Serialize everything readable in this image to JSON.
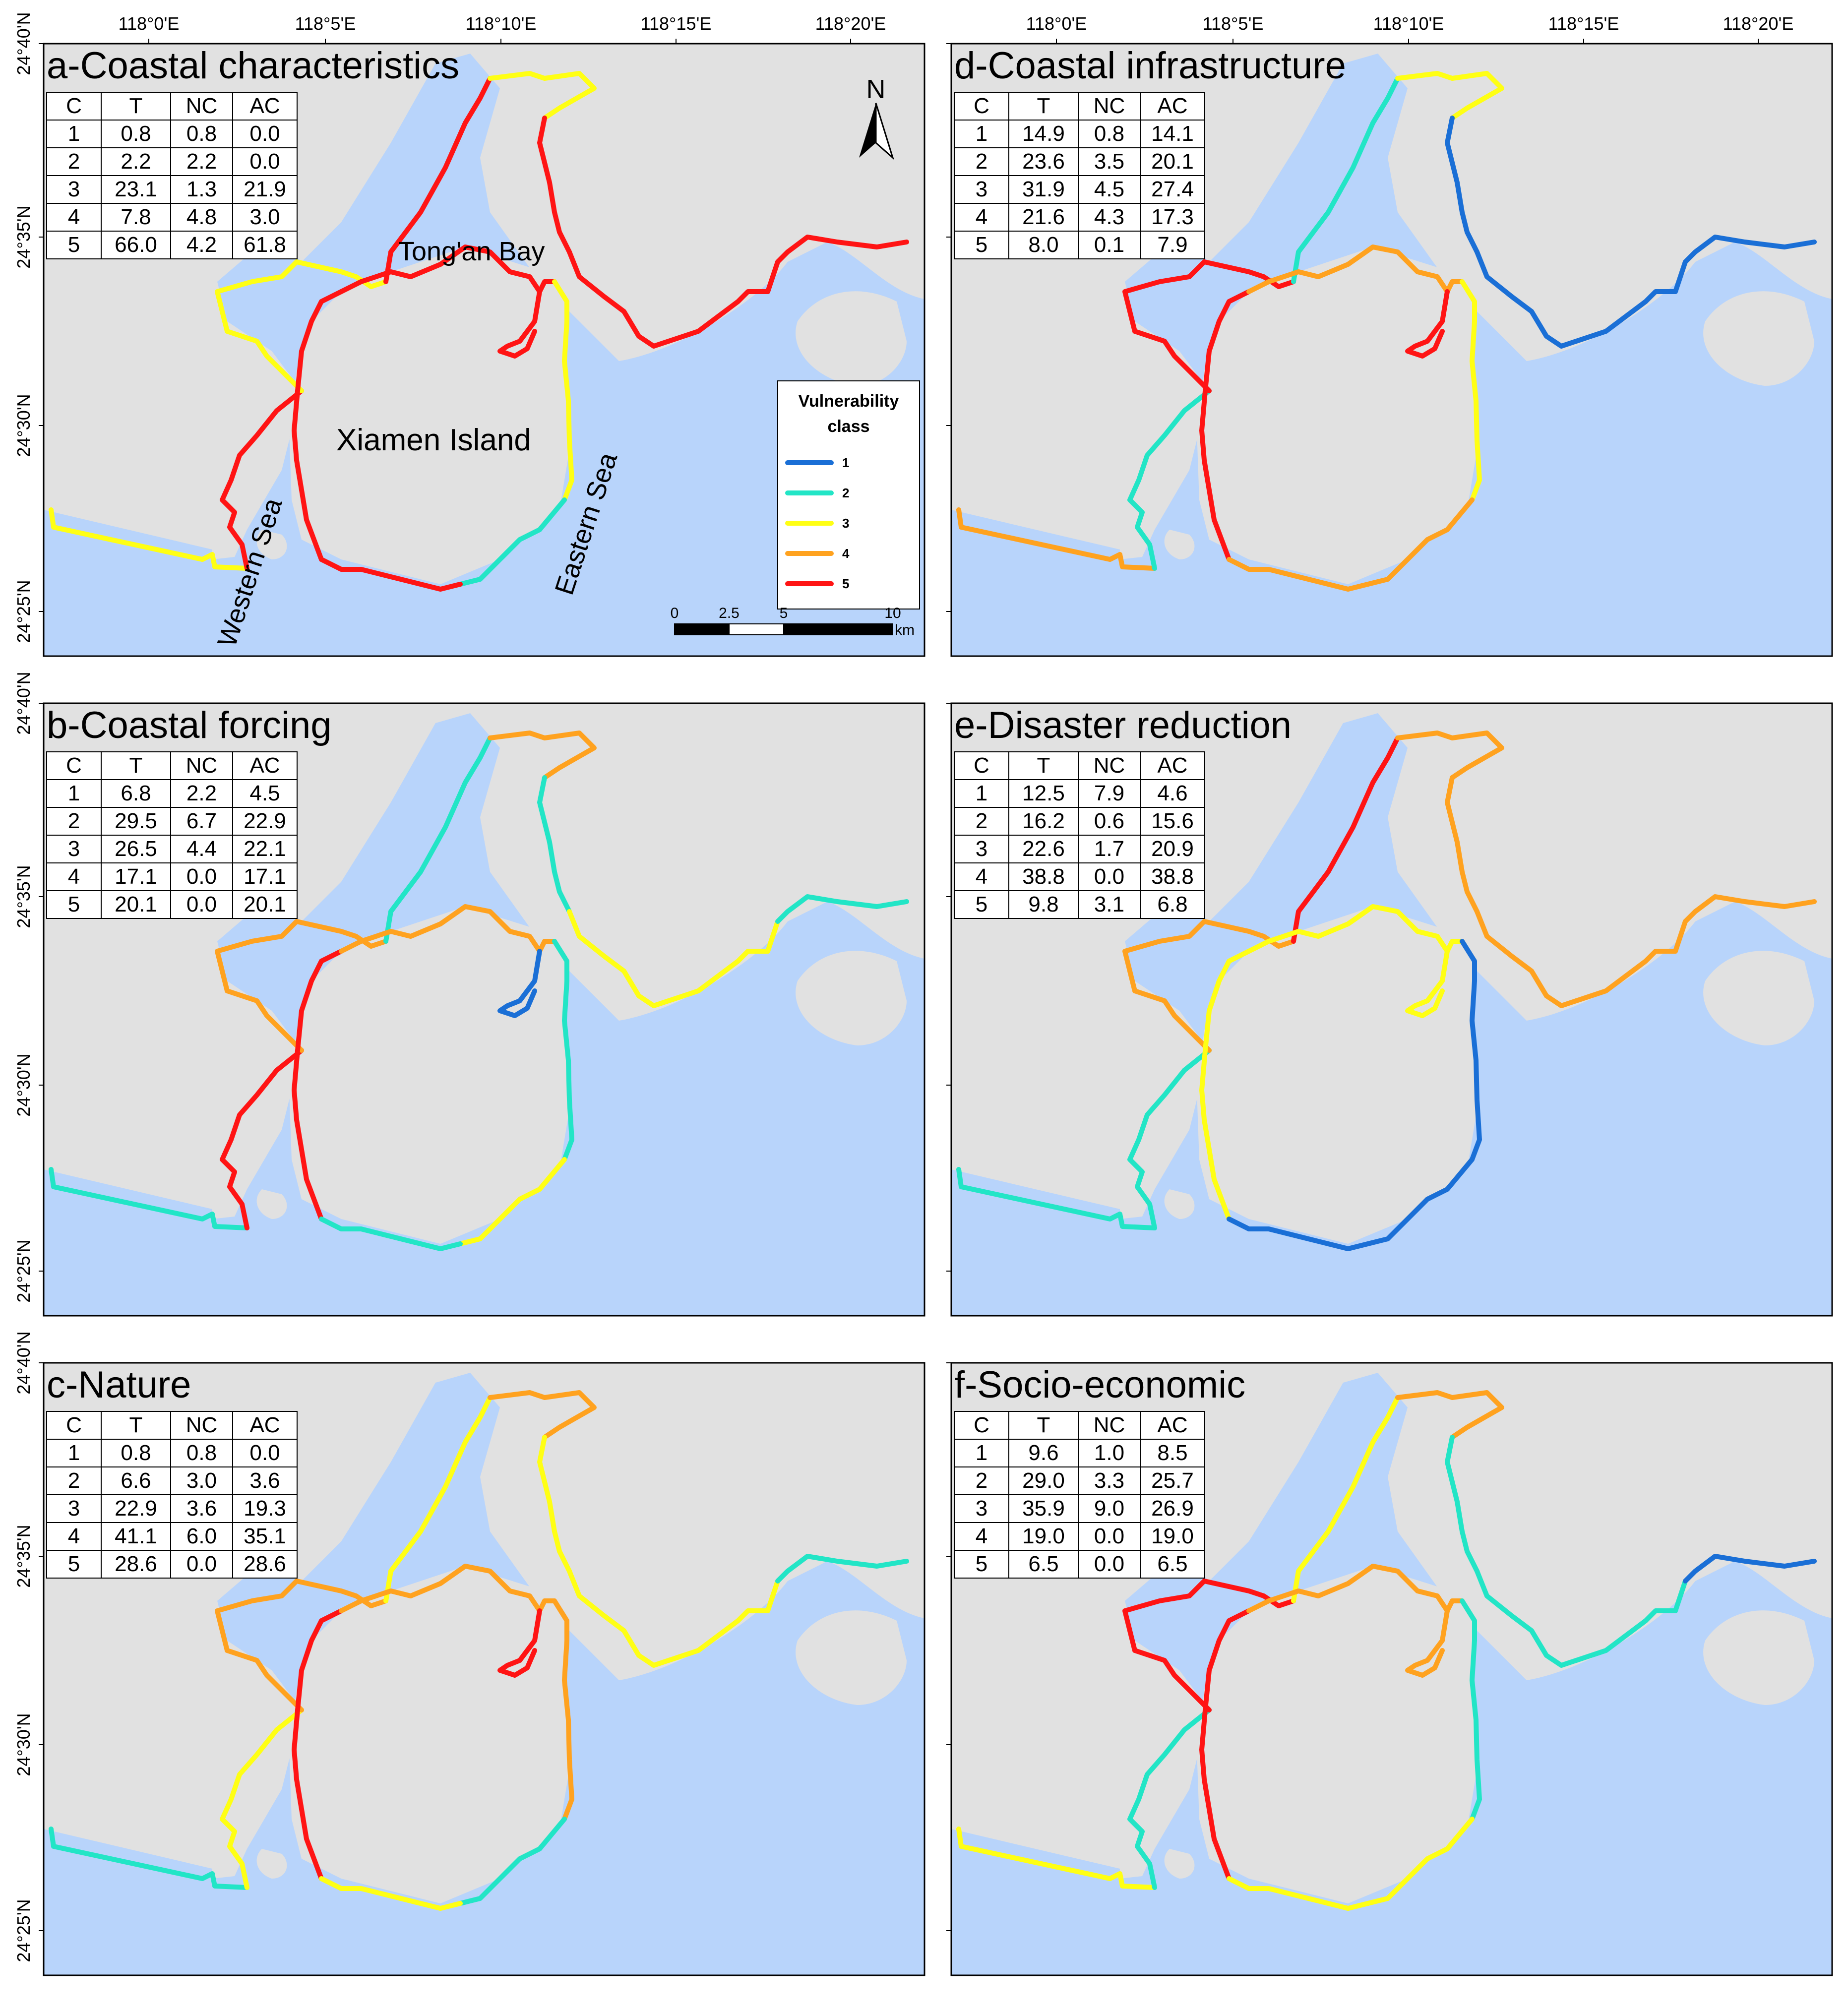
{
  "axes": {
    "lon_labels": [
      "118°0'E",
      "118°5'E",
      "118°10'E",
      "118°15'E",
      "118°20'E"
    ],
    "lat_labels": [
      "24°40'N",
      "24°35'N",
      "24°30'N",
      "24°25'N"
    ]
  },
  "class_colors": {
    "1": "#1a6fd6",
    "2": "#22e5c6",
    "3": "#ffff14",
    "4": "#ffa21f",
    "5": "#ff1414"
  },
  "colors": {
    "land": "#e1e1e1",
    "sea": "#b8d4fb",
    "frame": "#000000"
  },
  "place_labels": {
    "tongan_bay": "Tong'an Bay",
    "xiamen_island": "Xiamen Island",
    "western_sea": "Western Sea",
    "eastern_sea": "Eastern Sea"
  },
  "north_arrow": "N",
  "legend": {
    "title1": "Vulnerability",
    "title2": "class",
    "classes": [
      "1",
      "2",
      "3",
      "4",
      "5"
    ]
  },
  "scale_bar": {
    "ticks": [
      "0",
      "2.5",
      "5",
      "10"
    ],
    "unit": "km"
  },
  "table_headers": [
    "C",
    "T",
    "NC",
    "AC"
  ],
  "panels": [
    {
      "title": "a-Coastal characteristics",
      "rows": [
        [
          "1",
          "0.8",
          "0.8",
          "0.0"
        ],
        [
          "2",
          "2.2",
          "2.2",
          "0.0"
        ],
        [
          "3",
          "23.1",
          "1.3",
          "21.9"
        ],
        [
          "4",
          "7.8",
          "4.8",
          "3.0"
        ],
        [
          "5",
          "66.0",
          "4.2",
          "61.8"
        ]
      ],
      "segments": {
        "mainland_w": 5,
        "mainland_nw": 3,
        "bay_w": 5,
        "bay_n": 3,
        "bay_e": 5,
        "bay_se": 5,
        "east_main": 5,
        "east_far": 5,
        "island_w": 5,
        "island_n": 5,
        "island_e": 3,
        "island_se": 2,
        "island_s": 5,
        "inlet": 5,
        "western_sea": 3
      }
    },
    {
      "title": "b-Coastal forcing",
      "rows": [
        [
          "1",
          "6.8",
          "2.2",
          "4.5"
        ],
        [
          "2",
          "29.5",
          "6.7",
          "22.9"
        ],
        [
          "3",
          "26.5",
          "4.4",
          "22.1"
        ],
        [
          "4",
          "17.1",
          "0.0",
          "17.1"
        ],
        [
          "5",
          "20.1",
          "0.0",
          "20.1"
        ]
      ],
      "segments": {
        "mainland_w": 5,
        "mainland_nw": 4,
        "bay_w": 2,
        "bay_n": 4,
        "bay_e": 2,
        "bay_se": 3,
        "east_main": 3,
        "east_far": 2,
        "island_w": 5,
        "island_n": 4,
        "island_e": 2,
        "island_se": 3,
        "island_s": 2,
        "inlet": 1,
        "western_sea": 2
      }
    },
    {
      "title": "c-Nature",
      "rows": [
        [
          "1",
          "0.8",
          "0.8",
          "0.0"
        ],
        [
          "2",
          "6.6",
          "3.0",
          "3.6"
        ],
        [
          "3",
          "22.9",
          "3.6",
          "19.3"
        ],
        [
          "4",
          "41.1",
          "6.0",
          "35.1"
        ],
        [
          "5",
          "28.6",
          "0.0",
          "28.6"
        ]
      ],
      "segments": {
        "mainland_w": 3,
        "mainland_nw": 4,
        "bay_w": 3,
        "bay_n": 4,
        "bay_e": 3,
        "bay_se": 3,
        "east_main": 3,
        "east_far": 2,
        "island_w": 5,
        "island_n": 4,
        "island_e": 4,
        "island_se": 2,
        "island_s": 3,
        "inlet": 5,
        "western_sea": 2
      }
    },
    {
      "title": "d-Coastal infrastructure",
      "rows": [
        [
          "1",
          "14.9",
          "0.8",
          "14.1"
        ],
        [
          "2",
          "23.6",
          "3.5",
          "20.1"
        ],
        [
          "3",
          "31.9",
          "4.5",
          "27.4"
        ],
        [
          "4",
          "21.6",
          "4.3",
          "17.3"
        ],
        [
          "5",
          "8.0",
          "0.1",
          "7.9"
        ]
      ],
      "segments": {
        "mainland_w": 2,
        "mainland_nw": 5,
        "bay_w": 2,
        "bay_n": 3,
        "bay_e": 1,
        "bay_se": 1,
        "east_main": 1,
        "east_far": 1,
        "island_w": 5,
        "island_n": 4,
        "island_e": 3,
        "island_se": 4,
        "island_s": 4,
        "inlet": 5,
        "western_sea": 4
      }
    },
    {
      "title": "e-Disaster reduction",
      "rows": [
        [
          "1",
          "12.5",
          "7.9",
          "4.6"
        ],
        [
          "2",
          "16.2",
          "0.6",
          "15.6"
        ],
        [
          "3",
          "22.6",
          "1.7",
          "20.9"
        ],
        [
          "4",
          "38.8",
          "0.0",
          "38.8"
        ],
        [
          "5",
          "9.8",
          "3.1",
          "6.8"
        ]
      ],
      "segments": {
        "mainland_w": 2,
        "mainland_nw": 4,
        "bay_w": 5,
        "bay_n": 4,
        "bay_e": 4,
        "bay_se": 4,
        "east_main": 4,
        "east_far": 4,
        "island_w": 3,
        "island_n": 3,
        "island_e": 1,
        "island_se": 1,
        "island_s": 1,
        "inlet": 3,
        "western_sea": 2
      }
    },
    {
      "title": "f-Socio-economic",
      "rows": [
        [
          "1",
          "9.6",
          "1.0",
          "8.5"
        ],
        [
          "2",
          "29.0",
          "3.3",
          "25.7"
        ],
        [
          "3",
          "35.9",
          "9.0",
          "26.9"
        ],
        [
          "4",
          "19.0",
          "0.0",
          "19.0"
        ],
        [
          "5",
          "6.5",
          "0.0",
          "6.5"
        ]
      ],
      "segments": {
        "mainland_w": 2,
        "mainland_nw": 5,
        "bay_w": 3,
        "bay_n": 4,
        "bay_e": 2,
        "bay_se": 2,
        "east_main": 2,
        "east_far": 1,
        "island_w": 5,
        "island_n": 4,
        "island_e": 2,
        "island_se": 3,
        "island_s": 3,
        "inlet": 4,
        "western_sea": 3
      }
    }
  ]
}
